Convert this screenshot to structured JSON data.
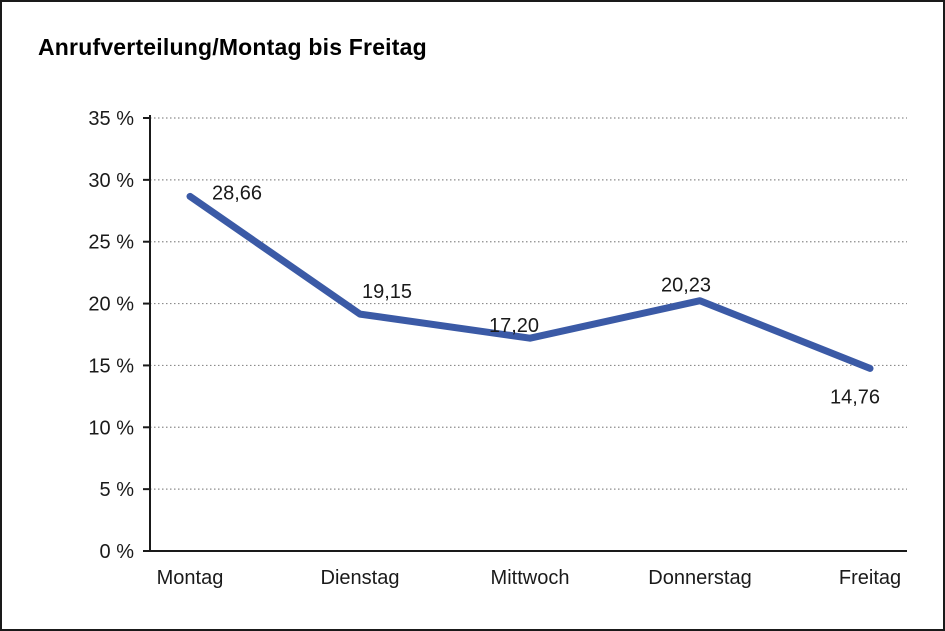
{
  "chart_data": {
    "type": "line",
    "title": "Anrufverteilung/Montag bis Freitag",
    "categories": [
      "Montag",
      "Dienstag",
      "Mittwoch",
      "Donnerstag",
      "Freitag"
    ],
    "series": [
      {
        "name": "Anrufverteilung",
        "values": [
          28.66,
          19.15,
          17.2,
          20.23,
          14.76
        ],
        "value_labels": [
          "28,66",
          "19,15",
          "17,20",
          "20,23",
          "14,76"
        ]
      }
    ],
    "xlabel": "",
    "ylabel": "",
    "ylim": [
      0,
      35
    ],
    "ytick_step": 5,
    "ytick_suffix": " %",
    "grid": "horizontal-dotted",
    "legend": "none",
    "colors": {
      "line": "#3B5AA6",
      "axis": "#1a1a1a",
      "gridline": "#8c8c8c",
      "text": "#1a1a1a",
      "background": "#ffffff"
    }
  }
}
